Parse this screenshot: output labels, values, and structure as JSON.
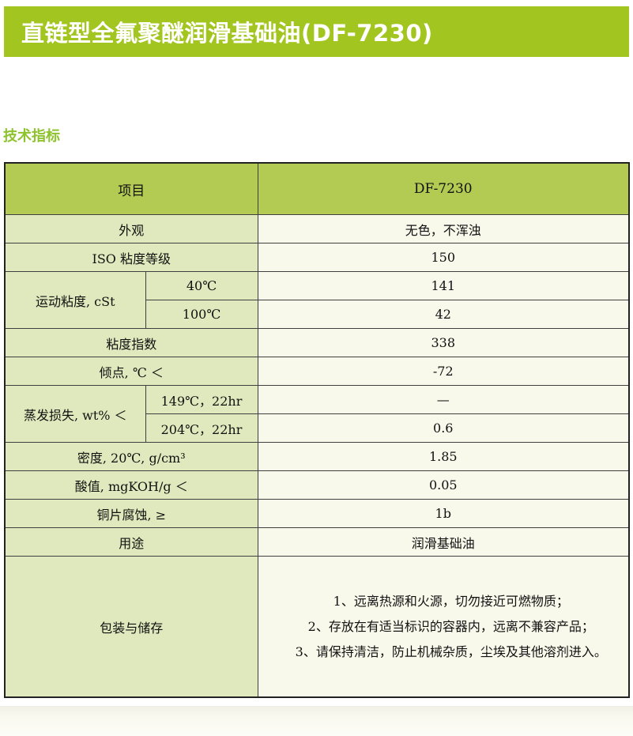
{
  "page": {
    "title": "直链型全氟聚醚润滑基础油(DF-7230)",
    "section_heading": "技术指标"
  },
  "colors": {
    "title_bar_bg": "#a3c51f",
    "table_header_bg": "#b3cb52",
    "label_cell_bg": "#dfe9bd",
    "value_cell_bg": "#f8f9eb",
    "section_heading_text": "#8dc32c",
    "border": "#3f3f3f",
    "title_text": "#ffffff"
  },
  "table": {
    "columns": {
      "item": "项目",
      "product": "DF-7230"
    },
    "rows": {
      "appearance": {
        "label": "外观",
        "value": "无色，不浑浊"
      },
      "iso_grade": {
        "label": "ISO 粘度等级",
        "value": "150"
      },
      "kinematic_viscosity": {
        "label": "运动粘度, cSt",
        "at_40c": {
          "label": "40℃",
          "value": "141"
        },
        "at_100c": {
          "label": "100℃",
          "value": "42"
        }
      },
      "viscosity_index": {
        "label": "粘度指数",
        "value": "338"
      },
      "pour_point": {
        "label": "倾点, ℃ ＜",
        "value": "-72"
      },
      "evaporation_loss": {
        "label": "蒸发损失, wt% ＜",
        "at_149c": {
          "label": "149℃，22hr",
          "value": "—"
        },
        "at_204c": {
          "label": "204℃，22hr",
          "value": "0.6"
        }
      },
      "density": {
        "label": "密度, 20℃, g/cm³",
        "value": "1.85"
      },
      "acid_value": {
        "label": "酸值, mgKOH/g ＜",
        "value": "0.05"
      },
      "copper_corrosion": {
        "label": "铜片腐蚀, ≥",
        "value": "1b"
      },
      "application": {
        "label": "用途",
        "value": "润滑基础油"
      },
      "packaging_storage": {
        "label": "包装与储存",
        "lines": [
          "1、远离热源和火源，切勿接近可燃物质；",
          "2、存放在有适当标识的容器内，远离不兼容产品；",
          "3、请保持清洁，防止机械杂质，尘埃及其他溶剂进入。"
        ]
      }
    }
  }
}
